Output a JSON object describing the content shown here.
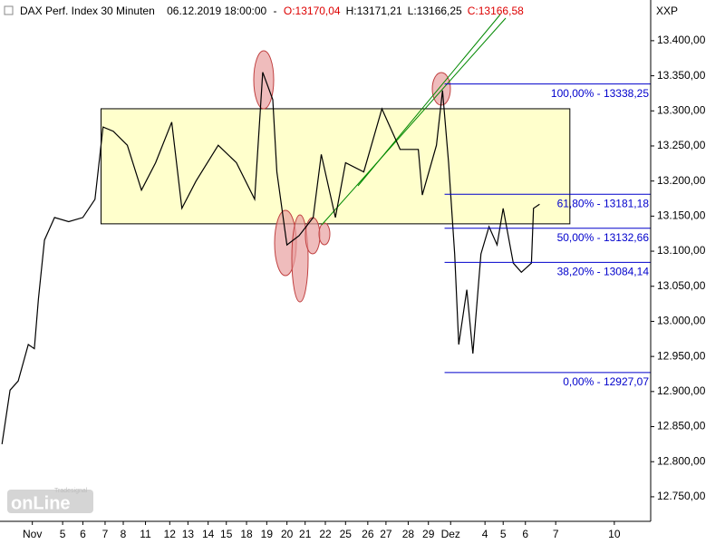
{
  "chart_data": {
    "type": "line",
    "title": "DAX Perf. Index 30 Minuten",
    "datetime": "06.12.2019 18:00:00",
    "separator": "-",
    "ohlc": [
      {
        "label": "O:13170,04",
        "color": "#dd0000"
      },
      {
        "label": "H:13171,21",
        "color": "#000000"
      },
      {
        "label": "L:13166,25",
        "color": "#000000"
      },
      {
        "label": "C:13166,58",
        "color": "#dd0000"
      }
    ],
    "symbol": "XXP",
    "logo": {
      "text": "onLine",
      "brand": "Tradesignal"
    },
    "series": [
      {
        "name": "DAX",
        "color": "#000000",
        "x": [
          -1.5,
          -1.1,
          -0.7,
          -0.2,
          0.1,
          0.3,
          0.6,
          1.1,
          1.8,
          2.5,
          3.1,
          3.5,
          4.0,
          4.7,
          5.4,
          6.1,
          6.9,
          7.4,
          8.1,
          9.2,
          10.1,
          11.0,
          11.4,
          11.9,
          12.1,
          12.6,
          13.2,
          13.9,
          14.3,
          15.0,
          15.5,
          16.4,
          17.3,
          18.2,
          19.1,
          19.3,
          20.0,
          20.3,
          20.6,
          20.9,
          21.1,
          21.5,
          21.8,
          22.2,
          22.6,
          23.0,
          23.3,
          23.8,
          24.2,
          24.7,
          24.8,
          25.1
        ],
        "values": [
          12825,
          12902,
          12915,
          12967,
          12961,
          13032,
          13116,
          13148,
          13142,
          13148,
          13174,
          13277,
          13271,
          13251,
          13187,
          13226,
          13284,
          13161,
          13200,
          13251,
          13226,
          13174,
          13355,
          13316,
          13213,
          13109,
          13122,
          13148,
          13238,
          13148,
          13226,
          13213,
          13303,
          13245,
          13245,
          13180,
          13251,
          13329,
          13226,
          13096,
          12967,
          13045,
          12954,
          13096,
          13135,
          13109,
          13161,
          13083,
          13070,
          13083,
          13161,
          13167
        ]
      }
    ],
    "zone": {
      "x0": 3.4,
      "x1": 26.6,
      "y0": 13139,
      "y1": 13303,
      "color": "#ffffcc"
    },
    "fib_start": 20.4,
    "fib_levels": [
      {
        "value": 13338.25,
        "label": "100,00% - 13338,25"
      },
      {
        "value": 13181.18,
        "label": "61,80% - 13181,18"
      },
      {
        "value": 13132.66,
        "label": "50,00% - 13132,66"
      },
      {
        "value": 13084.14,
        "label": "38,20% - 13084,14"
      },
      {
        "value": 12927.07,
        "label": "0,00% - 12927,07"
      }
    ],
    "xlim": [
      -1.6,
      30.6
    ],
    "ylim": [
      12715,
      13458
    ],
    "xticks": [
      {
        "value": 0,
        "label": "Nov"
      },
      {
        "value": 1.5,
        "label": "5"
      },
      {
        "value": 2.5,
        "label": "6"
      },
      {
        "value": 3.6,
        "label": "7"
      },
      {
        "value": 4.5,
        "label": "8"
      },
      {
        "value": 5.6,
        "label": "11"
      },
      {
        "value": 6.8,
        "label": "12"
      },
      {
        "value": 7.7,
        "label": "13"
      },
      {
        "value": 8.7,
        "label": "14"
      },
      {
        "value": 9.6,
        "label": "15"
      },
      {
        "value": 10.6,
        "label": "18"
      },
      {
        "value": 11.6,
        "label": "19"
      },
      {
        "value": 12.6,
        "label": "20"
      },
      {
        "value": 13.5,
        "label": "21"
      },
      {
        "value": 14.5,
        "label": "22"
      },
      {
        "value": 15.5,
        "label": "25"
      },
      {
        "value": 16.6,
        "label": "26"
      },
      {
        "value": 17.5,
        "label": "27"
      },
      {
        "value": 18.6,
        "label": "28"
      },
      {
        "value": 19.6,
        "label": "29"
      },
      {
        "value": 20.7,
        "label": "Dez"
      },
      {
        "value": 22.4,
        "label": "4"
      },
      {
        "value": 23.3,
        "label": "5"
      },
      {
        "value": 24.4,
        "label": "6"
      },
      {
        "value": 25.9,
        "label": "7"
      },
      {
        "value": 28.8,
        "label": "10"
      }
    ],
    "yticks": [
      {
        "value": 12750,
        "label": "12.750,00"
      },
      {
        "value": 12800,
        "label": "12.800,00"
      },
      {
        "value": 12850,
        "label": "12.850,00"
      },
      {
        "value": 12900,
        "label": "12.900,00"
      },
      {
        "value": 12950,
        "label": "12.950,00"
      },
      {
        "value": 13000,
        "label": "13.000,00"
      },
      {
        "value": 13050,
        "label": "13.050,00"
      },
      {
        "value": 13100,
        "label": "13.100,00"
      },
      {
        "value": 13150,
        "label": "13.150,00"
      },
      {
        "value": 13200,
        "label": "13.200,00"
      },
      {
        "value": 13250,
        "label": "13.250,00"
      },
      {
        "value": 13300,
        "label": "13.300,00"
      },
      {
        "value": 13350,
        "label": "13.350,00"
      },
      {
        "value": 13400,
        "label": "13.400,00"
      }
    ]
  }
}
